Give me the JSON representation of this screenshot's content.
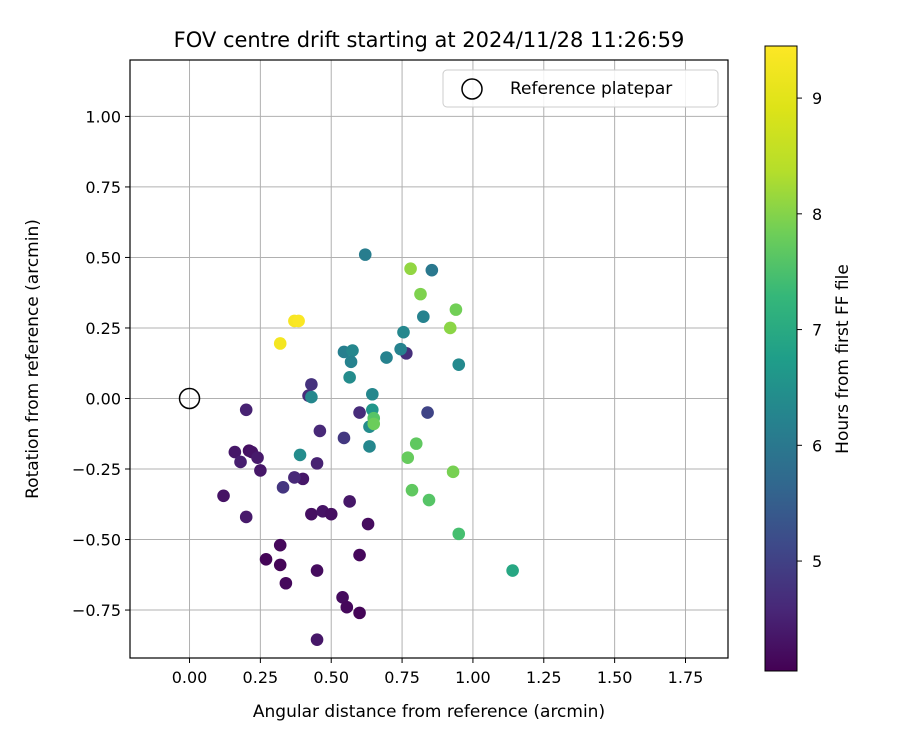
{
  "chart_data": {
    "type": "scatter",
    "title": "FOV centre drift starting at 2024/11/28 11:26:59",
    "xlabel": "Angular distance from reference (arcmin)",
    "ylabel": "Rotation from reference (arcmin)",
    "xlim": [
      -0.21,
      1.9
    ],
    "ylim": [
      -0.92,
      1.2
    ],
    "x_ticks": [
      0.0,
      0.25,
      0.5,
      0.75,
      1.0,
      1.25,
      1.5,
      1.75
    ],
    "x_tick_labels": [
      "0.00",
      "0.25",
      "0.50",
      "0.75",
      "1.00",
      "1.25",
      "1.50",
      "1.75"
    ],
    "y_ticks": [
      -0.75,
      -0.5,
      -0.25,
      0.0,
      0.25,
      0.5,
      0.75,
      1.0
    ],
    "y_tick_labels": [
      "−0.75",
      "−0.50",
      "−0.25",
      "0.00",
      "0.25",
      "0.50",
      "0.75",
      "1.00"
    ],
    "grid": true,
    "legend": {
      "position": "top-right",
      "entries": [
        "Reference platepar"
      ]
    },
    "reference_point": {
      "x": 0.0,
      "y": 0.0
    },
    "colorbar": {
      "label": "Hours from first FF file",
      "colormap": "viridis",
      "range": [
        4.05,
        9.45
      ],
      "ticks": [
        5,
        6,
        7,
        8,
        9
      ],
      "tick_labels": [
        "5",
        "6",
        "7",
        "8",
        "9"
      ]
    },
    "points": [
      {
        "x": 0.27,
        "y": -0.57,
        "h": 4.1
      },
      {
        "x": 0.32,
        "y": -0.52,
        "h": 4.15
      },
      {
        "x": 0.32,
        "y": -0.59,
        "h": 4.1
      },
      {
        "x": 0.34,
        "y": -0.655,
        "h": 4.15
      },
      {
        "x": 0.45,
        "y": -0.61,
        "h": 4.2
      },
      {
        "x": 0.54,
        "y": -0.705,
        "h": 4.2
      },
      {
        "x": 0.555,
        "y": -0.74,
        "h": 4.15
      },
      {
        "x": 0.6,
        "y": -0.76,
        "h": 4.1
      },
      {
        "x": 0.6,
        "y": -0.555,
        "h": 4.15
      },
      {
        "x": 0.45,
        "y": -0.855,
        "h": 4.35
      },
      {
        "x": 0.63,
        "y": -0.445,
        "h": 4.2
      },
      {
        "x": 0.43,
        "y": -0.41,
        "h": 4.25
      },
      {
        "x": 0.47,
        "y": -0.4,
        "h": 4.3
      },
      {
        "x": 0.5,
        "y": -0.41,
        "h": 4.25
      },
      {
        "x": 0.565,
        "y": -0.365,
        "h": 4.35
      },
      {
        "x": 0.2,
        "y": -0.42,
        "h": 4.4
      },
      {
        "x": 0.12,
        "y": -0.345,
        "h": 4.3
      },
      {
        "x": 0.21,
        "y": -0.185,
        "h": 4.25
      },
      {
        "x": 0.16,
        "y": -0.19,
        "h": 4.35
      },
      {
        "x": 0.22,
        "y": -0.19,
        "h": 4.3
      },
      {
        "x": 0.24,
        "y": -0.21,
        "h": 4.4
      },
      {
        "x": 0.25,
        "y": -0.255,
        "h": 4.35
      },
      {
        "x": 0.18,
        "y": -0.225,
        "h": 4.45
      },
      {
        "x": 0.2,
        "y": -0.04,
        "h": 4.5
      },
      {
        "x": 0.4,
        "y": -0.285,
        "h": 4.35
      },
      {
        "x": 0.37,
        "y": -0.28,
        "h": 4.6
      },
      {
        "x": 0.33,
        "y": -0.315,
        "h": 4.8
      },
      {
        "x": 0.45,
        "y": -0.23,
        "h": 4.5
      },
      {
        "x": 0.46,
        "y": -0.115,
        "h": 4.6
      },
      {
        "x": 0.42,
        "y": 0.01,
        "h": 4.65
      },
      {
        "x": 0.43,
        "y": 0.05,
        "h": 4.75
      },
      {
        "x": 0.545,
        "y": -0.14,
        "h": 4.85
      },
      {
        "x": 0.6,
        "y": -0.05,
        "h": 4.65
      },
      {
        "x": 0.765,
        "y": 0.16,
        "h": 4.7
      },
      {
        "x": 0.84,
        "y": -0.05,
        "h": 5.05
      },
      {
        "x": 0.855,
        "y": 0.455,
        "h": 6.0
      },
      {
        "x": 0.62,
        "y": 0.51,
        "h": 6.1
      },
      {
        "x": 0.825,
        "y": 0.29,
        "h": 6.2
      },
      {
        "x": 0.755,
        "y": 0.235,
        "h": 6.3
      },
      {
        "x": 0.95,
        "y": 0.12,
        "h": 6.35
      },
      {
        "x": 0.745,
        "y": 0.175,
        "h": 6.2
      },
      {
        "x": 0.695,
        "y": 0.145,
        "h": 6.2
      },
      {
        "x": 0.545,
        "y": 0.165,
        "h": 6.15
      },
      {
        "x": 0.575,
        "y": 0.17,
        "h": 6.3
      },
      {
        "x": 0.57,
        "y": 0.13,
        "h": 6.2
      },
      {
        "x": 0.565,
        "y": 0.075,
        "h": 6.4
      },
      {
        "x": 0.645,
        "y": 0.015,
        "h": 6.3
      },
      {
        "x": 0.43,
        "y": 0.005,
        "h": 6.3
      },
      {
        "x": 0.635,
        "y": -0.1,
        "h": 6.4
      },
      {
        "x": 0.635,
        "y": -0.17,
        "h": 6.3
      },
      {
        "x": 0.645,
        "y": -0.04,
        "h": 6.6
      },
      {
        "x": 0.65,
        "y": -0.07,
        "h": 7.6
      },
      {
        "x": 0.65,
        "y": -0.09,
        "h": 7.8
      },
      {
        "x": 0.39,
        "y": -0.2,
        "h": 6.4
      },
      {
        "x": 1.14,
        "y": -0.61,
        "h": 6.95
      },
      {
        "x": 0.8,
        "y": -0.16,
        "h": 7.7
      },
      {
        "x": 0.77,
        "y": -0.21,
        "h": 7.75
      },
      {
        "x": 0.785,
        "y": -0.325,
        "h": 7.7
      },
      {
        "x": 0.845,
        "y": -0.36,
        "h": 7.6
      },
      {
        "x": 0.95,
        "y": -0.48,
        "h": 7.45
      },
      {
        "x": 0.93,
        "y": -0.26,
        "h": 7.9
      },
      {
        "x": 0.78,
        "y": 0.46,
        "h": 8.1
      },
      {
        "x": 0.815,
        "y": 0.37,
        "h": 7.95
      },
      {
        "x": 0.94,
        "y": 0.315,
        "h": 7.85
      },
      {
        "x": 0.92,
        "y": 0.25,
        "h": 8.05
      },
      {
        "x": 0.32,
        "y": 0.195,
        "h": 9.3
      },
      {
        "x": 0.37,
        "y": 0.275,
        "h": 9.35
      },
      {
        "x": 0.385,
        "y": 0.275,
        "h": 9.4
      }
    ]
  }
}
